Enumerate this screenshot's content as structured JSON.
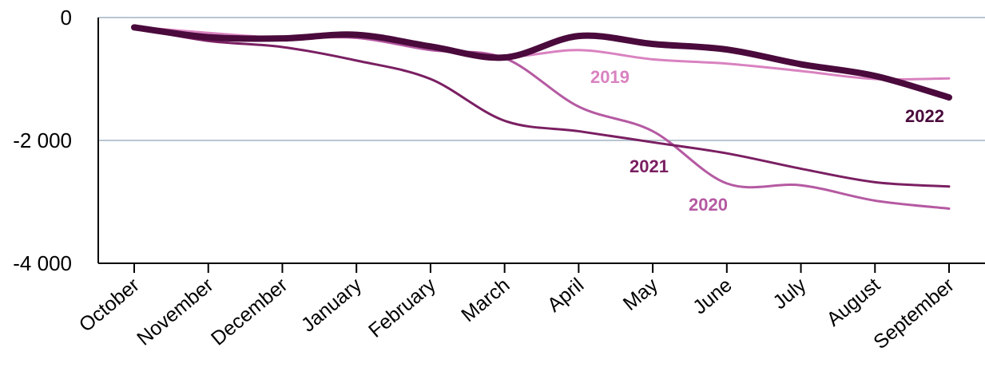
{
  "chart_data": {
    "type": "line",
    "title": "",
    "xlabel": "",
    "ylabel": "",
    "categories": [
      "October",
      "November",
      "December",
      "January",
      "February",
      "March",
      "April",
      "May",
      "June",
      "July",
      "August",
      "September"
    ],
    "ylim": [
      -4000,
      0
    ],
    "y_ticks": [
      0,
      -2000,
      -4000
    ],
    "y_tick_labels": [
      "0",
      "-2 000",
      "-4 000"
    ],
    "grid": true,
    "legend": "none (series labeled directly on lines)",
    "series": [
      {
        "name": "2019",
        "color": "#d982c0",
        "width": 3,
        "values": [
          -150,
          -250,
          -330,
          -330,
          -500,
          -640,
          -530,
          -680,
          -750,
          -870,
          -1000,
          -990
        ]
      },
      {
        "name": "2020",
        "color": "#b55aa2",
        "width": 3,
        "values": [
          -150,
          -330,
          -330,
          -330,
          -530,
          -660,
          -1450,
          -1850,
          -2700,
          -2730,
          -2980,
          -3110
        ]
      },
      {
        "name": "2021",
        "color": "#7a1f62",
        "width": 3,
        "values": [
          -170,
          -380,
          -480,
          -700,
          -1000,
          -1680,
          -1850,
          -2030,
          -2210,
          -2460,
          -2680,
          -2750
        ]
      },
      {
        "name": "2022",
        "color": "#4a0a3c",
        "width": 8,
        "values": [
          -160,
          -320,
          -340,
          -280,
          -470,
          -650,
          -300,
          -430,
          -520,
          -760,
          -950,
          -1300
        ]
      }
    ]
  }
}
